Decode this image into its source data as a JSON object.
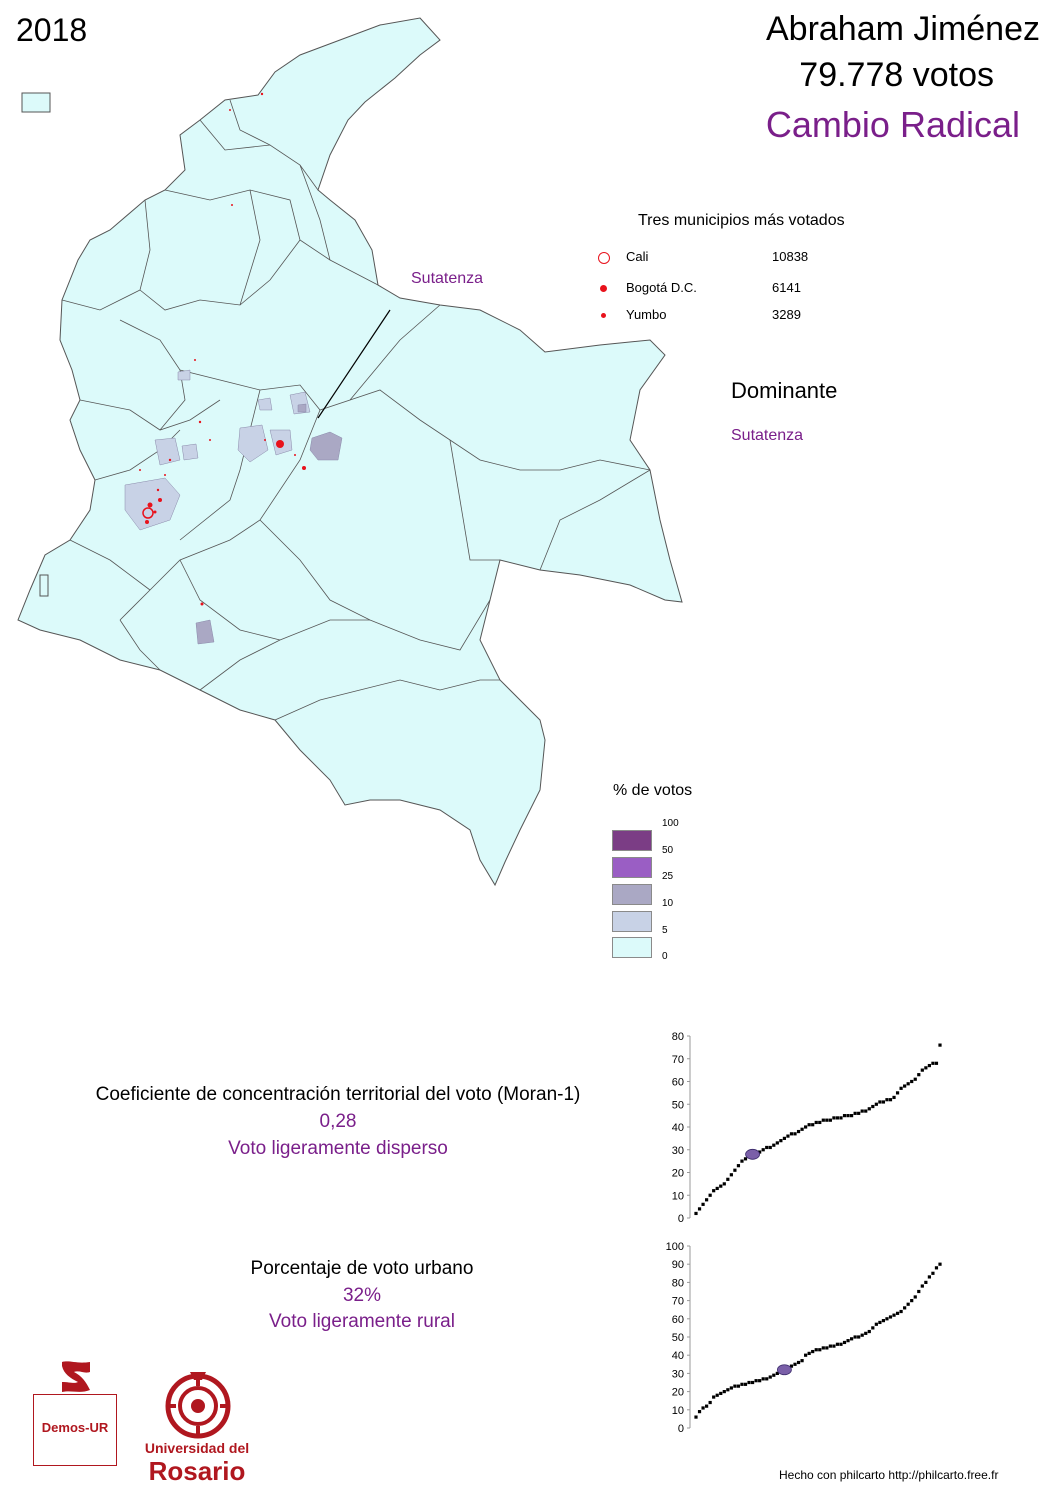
{
  "year": "2018",
  "candidate": {
    "name": "Abraham Jiménez",
    "votes": "79.778 votos",
    "party": "Cambio Radical"
  },
  "top_municipalities": {
    "title": "Tres municipios más votados",
    "items": [
      {
        "name": "Cali",
        "votes": "10838"
      },
      {
        "name": "Bogotá D.C.",
        "votes": "6141"
      },
      {
        "name": "Yumbo",
        "votes": "3289"
      }
    ]
  },
  "dominant": {
    "title": "Dominante",
    "name": "Sutatenza"
  },
  "map": {
    "callout_label": "Sutatenza",
    "base_color": "#dcfafa",
    "border_color": "#555555",
    "marker_color": "#e8121c"
  },
  "legend": {
    "title": "% de votos",
    "breaks": [
      "100",
      "50",
      "25",
      "10",
      "5",
      "0"
    ],
    "colors": [
      "#7b3d85",
      "#9a5ec4",
      "#aaa8c4",
      "#c8d2e6",
      "#dcfafa"
    ]
  },
  "moran": {
    "label": "Coeficiente de concentración territorial del voto (Moran-1)",
    "value": "0,28",
    "text": "Voto ligeramente disperso"
  },
  "urban": {
    "label": "Porcentaje de voto urbano",
    "value": "32%",
    "text": "Voto ligeramente rural"
  },
  "chart_data": [
    {
      "type": "scatter",
      "ylim": [
        0,
        80
      ],
      "yticks": [
        "0",
        "10",
        "20",
        "30",
        "40",
        "50",
        "60",
        "70",
        "80"
      ],
      "series": [
        {
          "y": [
            2,
            4,
            6,
            8,
            10,
            12,
            13,
            14,
            15,
            17,
            19,
            21,
            23,
            25,
            26,
            27,
            28,
            28,
            29,
            30,
            31,
            31,
            32,
            33,
            34,
            35,
            36,
            37,
            37,
            38,
            39,
            40,
            41,
            41,
            42,
            42,
            43,
            43,
            43,
            44,
            44,
            44,
            45,
            45,
            45,
            46,
            46,
            47,
            47,
            48,
            49,
            50,
            51,
            51,
            52,
            52,
            53,
            55,
            57,
            58,
            59,
            60,
            61,
            63,
            65,
            66,
            67,
            68,
            68,
            76
          ]
        }
      ],
      "highlight": {
        "y": 28,
        "color": "#7a5fa8"
      }
    },
    {
      "type": "scatter",
      "ylim": [
        0,
        100
      ],
      "yticks": [
        "0",
        "10",
        "20",
        "30",
        "40",
        "50",
        "60",
        "70",
        "80",
        "90",
        "100"
      ],
      "series": [
        {
          "y": [
            6,
            9,
            11,
            12,
            14,
            17,
            18,
            19,
            20,
            21,
            22,
            23,
            23,
            24,
            24,
            25,
            25,
            26,
            26,
            27,
            27,
            28,
            29,
            30,
            31,
            32,
            33,
            34,
            35,
            36,
            37,
            40,
            41,
            42,
            43,
            43,
            44,
            44,
            45,
            45,
            46,
            46,
            47,
            48,
            49,
            50,
            50,
            51,
            52,
            53,
            55,
            57,
            58,
            59,
            60,
            61,
            62,
            63,
            64,
            66,
            68,
            70,
            72,
            75,
            78,
            80,
            83,
            85,
            88,
            90
          ]
        }
      ],
      "highlight": {
        "y": 32,
        "color": "#7a5fa8"
      }
    }
  ],
  "logos": {
    "demos": "Demos-UR",
    "university_line1": "Universidad del",
    "university_line2": "Rosario"
  },
  "credit": "Hecho con  philcarto http://philcarto.free.fr"
}
